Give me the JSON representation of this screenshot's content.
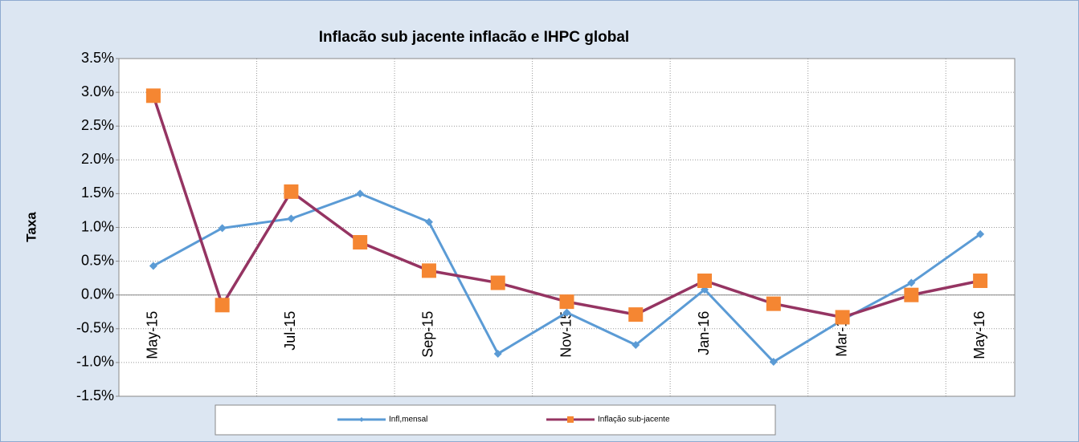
{
  "chart_data": {
    "type": "line",
    "title": "Inflacão sub jacente inflacão e IHPC global",
    "y_label": "Taxa",
    "categories": [
      "May-15",
      null,
      "Jul-15",
      null,
      "Sep-15",
      null,
      "Nov-15",
      null,
      "Jan-16",
      null,
      "Mar-16",
      null,
      "May-16"
    ],
    "series": [
      {
        "name": "Infl,mensal",
        "color": "#5b9bd5",
        "marker": "diamond",
        "marker_color": "#5b9bd5",
        "values": [
          0.43,
          0.99,
          1.13,
          1.5,
          1.08,
          -0.87,
          -0.26,
          -0.74,
          0.08,
          -0.99,
          -0.37,
          0.18,
          0.9
        ]
      },
      {
        "name": "Inflação sub-jacente",
        "color": "#953462",
        "marker": "square",
        "marker_color": "#f58632",
        "values": [
          2.95,
          -0.15,
          1.53,
          0.78,
          0.36,
          0.18,
          -0.1,
          -0.29,
          0.21,
          -0.13,
          -0.33,
          0.0,
          0.21
        ]
      }
    ],
    "ylim": [
      -1.5,
      3.5
    ],
    "yticks": [
      {
        "value": -1.5,
        "label": "-1.5%"
      },
      {
        "value": -1,
        "label": "-1.0%"
      },
      {
        "value": -0.5,
        "label": "-0.5%"
      },
      {
        "value": 0,
        "label": "0.0%"
      },
      {
        "value": 0.5,
        "label": "0.5%"
      },
      {
        "value": 1,
        "label": "1.0%"
      },
      {
        "value": 1.5,
        "label": "1.5%"
      },
      {
        "value": 2,
        "label": "2.0%"
      },
      {
        "value": 2.5,
        "label": "2.5%"
      },
      {
        "value": 3,
        "label": "3.0%"
      },
      {
        "value": 3.5,
        "label": "3.5%"
      }
    ],
    "grid": true,
    "legend": "bottom"
  }
}
